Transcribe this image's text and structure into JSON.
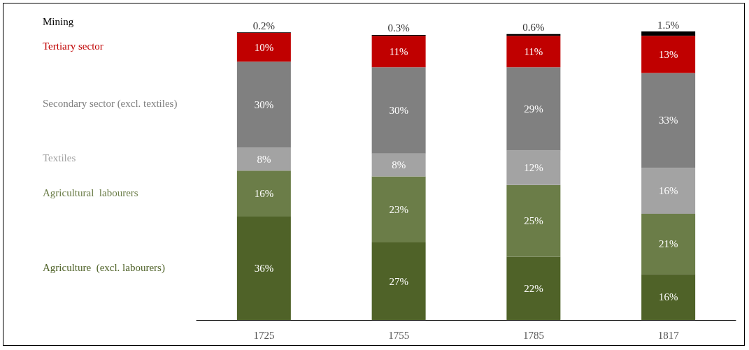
{
  "chart_data": {
    "type": "bar",
    "stacked": true,
    "legend": false,
    "categories": [
      "1725",
      "1755",
      "1785",
      "1817"
    ],
    "series": [
      {
        "name": "Agriculture  (excl. labourers)",
        "color": "#4f6228",
        "values": [
          36,
          27,
          22,
          16
        ],
        "value_labels": [
          "36%",
          "27%",
          "22%",
          "16%"
        ]
      },
      {
        "name": "Agricultural  labourers",
        "color": "#6b7d48",
        "values": [
          16,
          23,
          25,
          21
        ],
        "value_labels": [
          "16%",
          "23%",
          "25%",
          "21%"
        ]
      },
      {
        "name": "Textiles",
        "color": "#a3a3a3",
        "values": [
          8,
          8,
          12,
          16
        ],
        "value_labels": [
          "8%",
          "8%",
          "12%",
          "16%"
        ]
      },
      {
        "name": "Secondary sector (excl. textiles)",
        "color": "#808080",
        "values": [
          30,
          30,
          29,
          33
        ],
        "value_labels": [
          "30%",
          "30%",
          "29%",
          "33%"
        ]
      },
      {
        "name": "Tertiary sector",
        "color": "#c00000",
        "values": [
          10,
          11,
          11,
          13
        ],
        "value_labels": [
          "10%",
          "11%",
          "11%",
          "13%"
        ]
      },
      {
        "name": "Mining",
        "color": "#000000",
        "values": [
          0.2,
          0.3,
          0.6,
          1.5
        ],
        "value_labels": [
          "0.2%",
          "0.3%",
          "0.6%",
          "1.5%"
        ]
      }
    ]
  }
}
